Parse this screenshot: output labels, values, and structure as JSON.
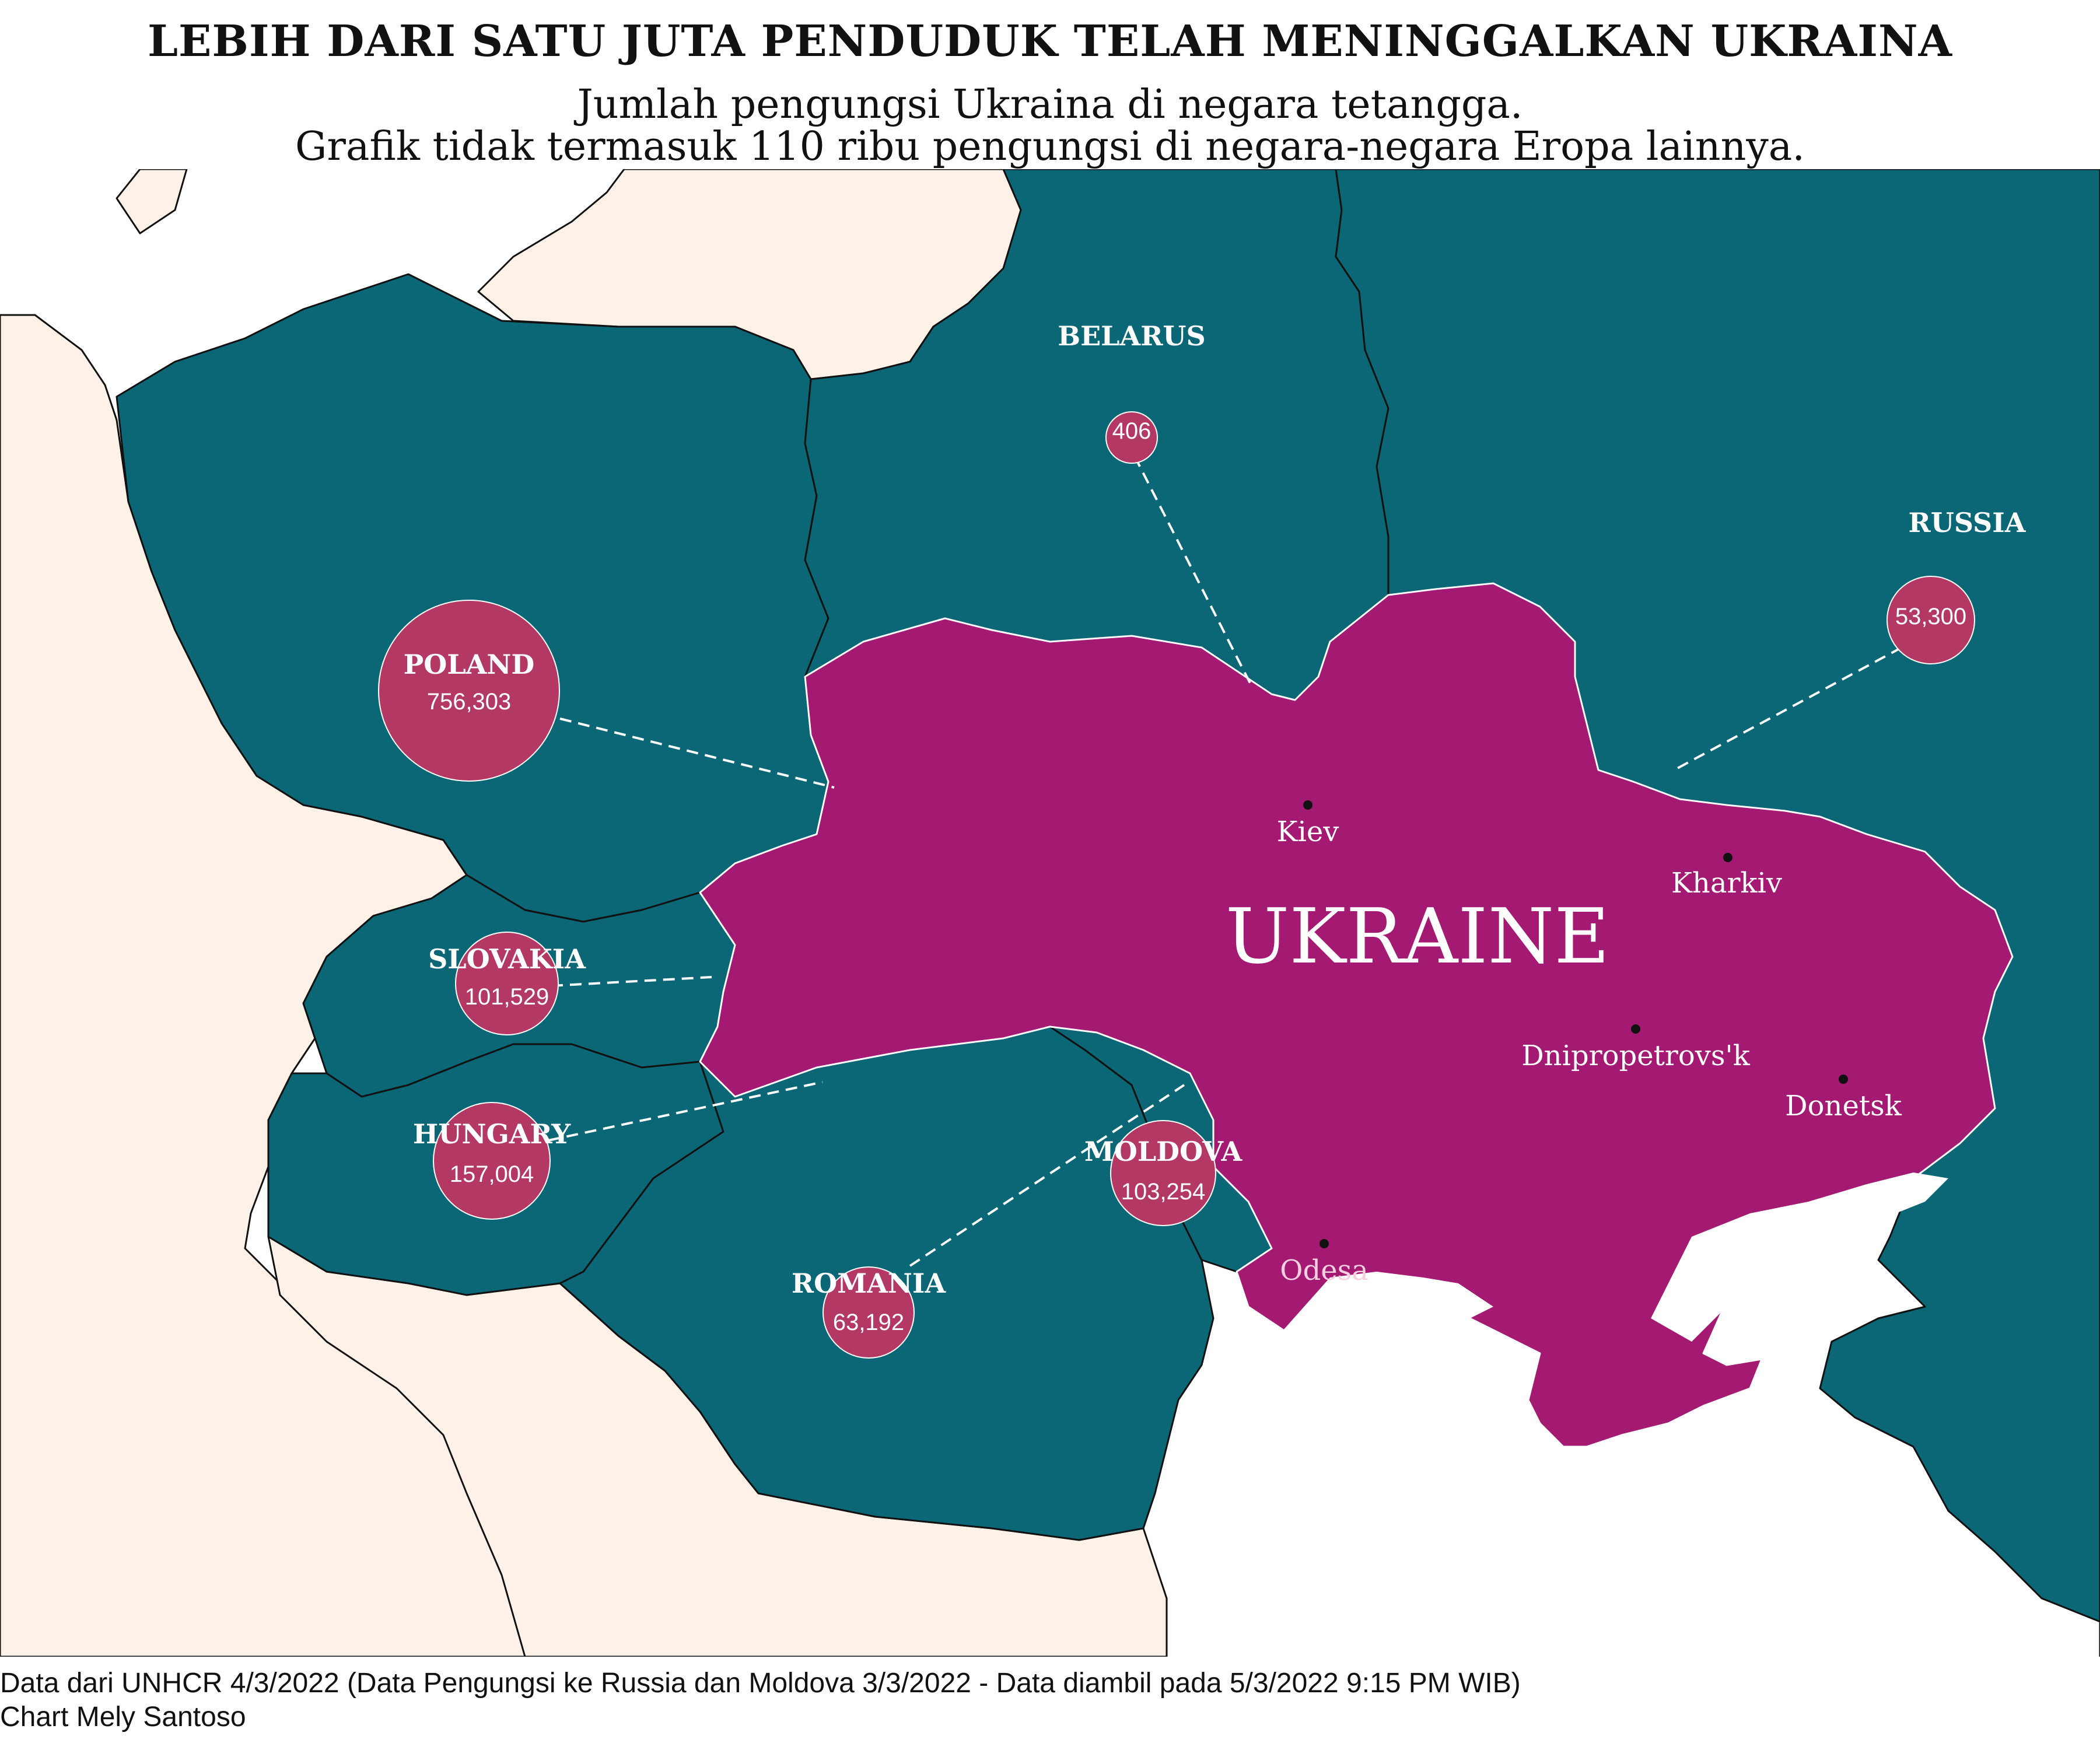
{
  "title": "LEBIH DARI SATU JUTA PENDUDUK TELAH MENINGGALKAN UKRAINA",
  "subtitle_line1": "Jumlah pengungsi Ukraina di negara tetangga.",
  "subtitle_line2": "Grafik tidak termasuk 110 ribu pengungsi di negara-negara Eropa lainnya.",
  "map_label": "UKRAINE",
  "countries": [
    {
      "name": "POLAND",
      "value": "756,303"
    },
    {
      "name": "SLOVAKIA",
      "value": "101,529"
    },
    {
      "name": "HUNGARY",
      "value": "157,004"
    },
    {
      "name": "MOLDOVA",
      "value": "103,254"
    },
    {
      "name": "ROMANIA",
      "value": "63,192"
    },
    {
      "name": "BELARUS",
      "value": "406"
    },
    {
      "name": "RUSSIA",
      "value": "53,300"
    }
  ],
  "cities": [
    "Kiev",
    "Kharkiv",
    "Dnipropetrovs'k",
    "Donetsk",
    "Odesa"
  ],
  "footer_line1": "Data dari UNHCR 4/3/2022 (Data Pengungsi ke Russia dan Moldova 3/3/2022 - Data diambil pada 5/3/2022 9:15 PM WIB)",
  "footer_line2": "Chart Mely Santoso",
  "colors": {
    "ukraine": "#a41a72",
    "neighbors": "#0b6676",
    "other_land": "#fdf1e8",
    "sea": "#ffffff",
    "bubble": "#b33864"
  }
}
